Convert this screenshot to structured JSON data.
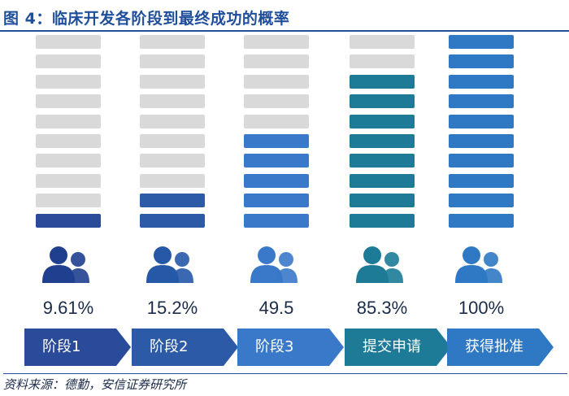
{
  "title": "图 4：临床开发各阶段到最终成功的概率",
  "source": "资料来源：德勤，安信证券研究所",
  "chart_data": {
    "type": "bar",
    "total_segments": 10,
    "categories": [
      "阶段1",
      "阶段2",
      "阶段3",
      "提交申请",
      "获得批准"
    ],
    "values": [
      9.61,
      15.2,
      49.5,
      85.3,
      100
    ],
    "value_labels": [
      "9.61%",
      "15.2%",
      "49.5",
      "85.3%",
      "100%"
    ],
    "filled_segments": [
      1,
      2,
      5,
      8,
      10
    ],
    "colors": {
      "empty": "#d9d9d9",
      "stage_fill": [
        "#2a4a9a",
        "#2d5aa6",
        "#3a78c9",
        "#1d7b97",
        "#2f79c4"
      ],
      "arrow_fill": [
        "#2a4a9a",
        "#2d5aa6",
        "#3a78c9",
        "#1d7b97",
        "#2f79c4"
      ],
      "icon": [
        "#1f3f8f",
        "#2559a8",
        "#3a78c9",
        "#1d7b97",
        "#2f79c4"
      ]
    },
    "icons": [
      "people-icon",
      "people-icon",
      "people-icon",
      "people-icon",
      "people-icon"
    ]
  }
}
